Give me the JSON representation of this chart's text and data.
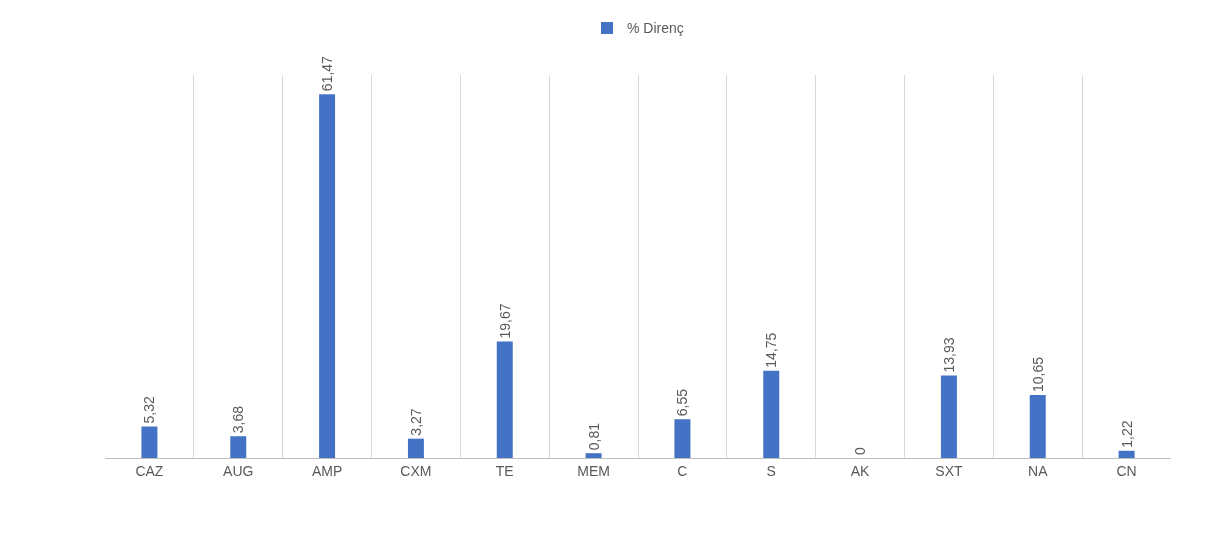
{
  "chart_data": {
    "type": "bar",
    "categories": [
      "CAZ",
      "AUG",
      "AMP",
      "CXM",
      "TE",
      "MEM",
      "C",
      "S",
      "AK",
      "SXT",
      "NA",
      "CN"
    ],
    "series": [
      {
        "name": "% Direnç",
        "color": "#4472c4",
        "values": [
          5.32,
          3.68,
          61.47,
          3.27,
          19.67,
          0.81,
          6.55,
          14.75,
          0,
          13.93,
          10.65,
          1.22
        ],
        "value_labels": [
          "5,32",
          "3,68",
          "61,47",
          "3,27",
          "19,67",
          "0,81",
          "6,55",
          "14,75",
          "0",
          "13,93",
          "10,65",
          "1,22"
        ]
      }
    ],
    "grid": "x",
    "legend": "top"
  }
}
